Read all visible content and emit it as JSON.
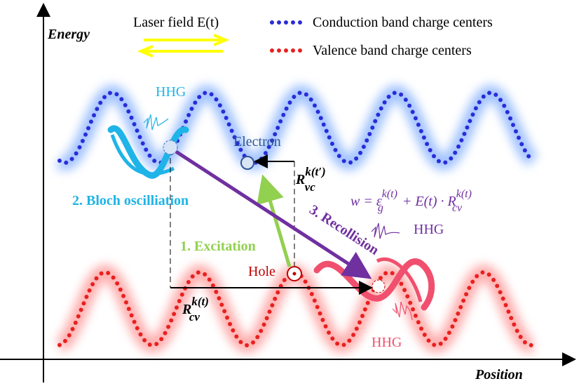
{
  "axes": {
    "y_label": "Energy",
    "x_label": "Position"
  },
  "legend": {
    "laser": "Laser field E(t)",
    "conduction": "Conduction band charge centers",
    "valence": "Valence band charge centers"
  },
  "labels": {
    "hhg_top": "HHG",
    "hhg_right": "HHG",
    "hhg_bottom": "HHG",
    "electron": "Electron",
    "hole": "Hole",
    "bloch": "2. Bloch oscilliation",
    "excitation": "1. Excitation",
    "recollision": "3. Recollision"
  },
  "r_vc": {
    "symbol": "R",
    "sup": "k(t′)",
    "sub": "vc"
  },
  "r_cv": {
    "symbol": "R",
    "sup": "k(t)",
    "sub": "cv"
  },
  "formula": {
    "lhs": "w = ε",
    "eps_sup": "k(t)",
    "eps_sub": "g",
    "mid": " + E(t) · R",
    "r_sup": "k(t)",
    "r_sub": "cv"
  }
}
